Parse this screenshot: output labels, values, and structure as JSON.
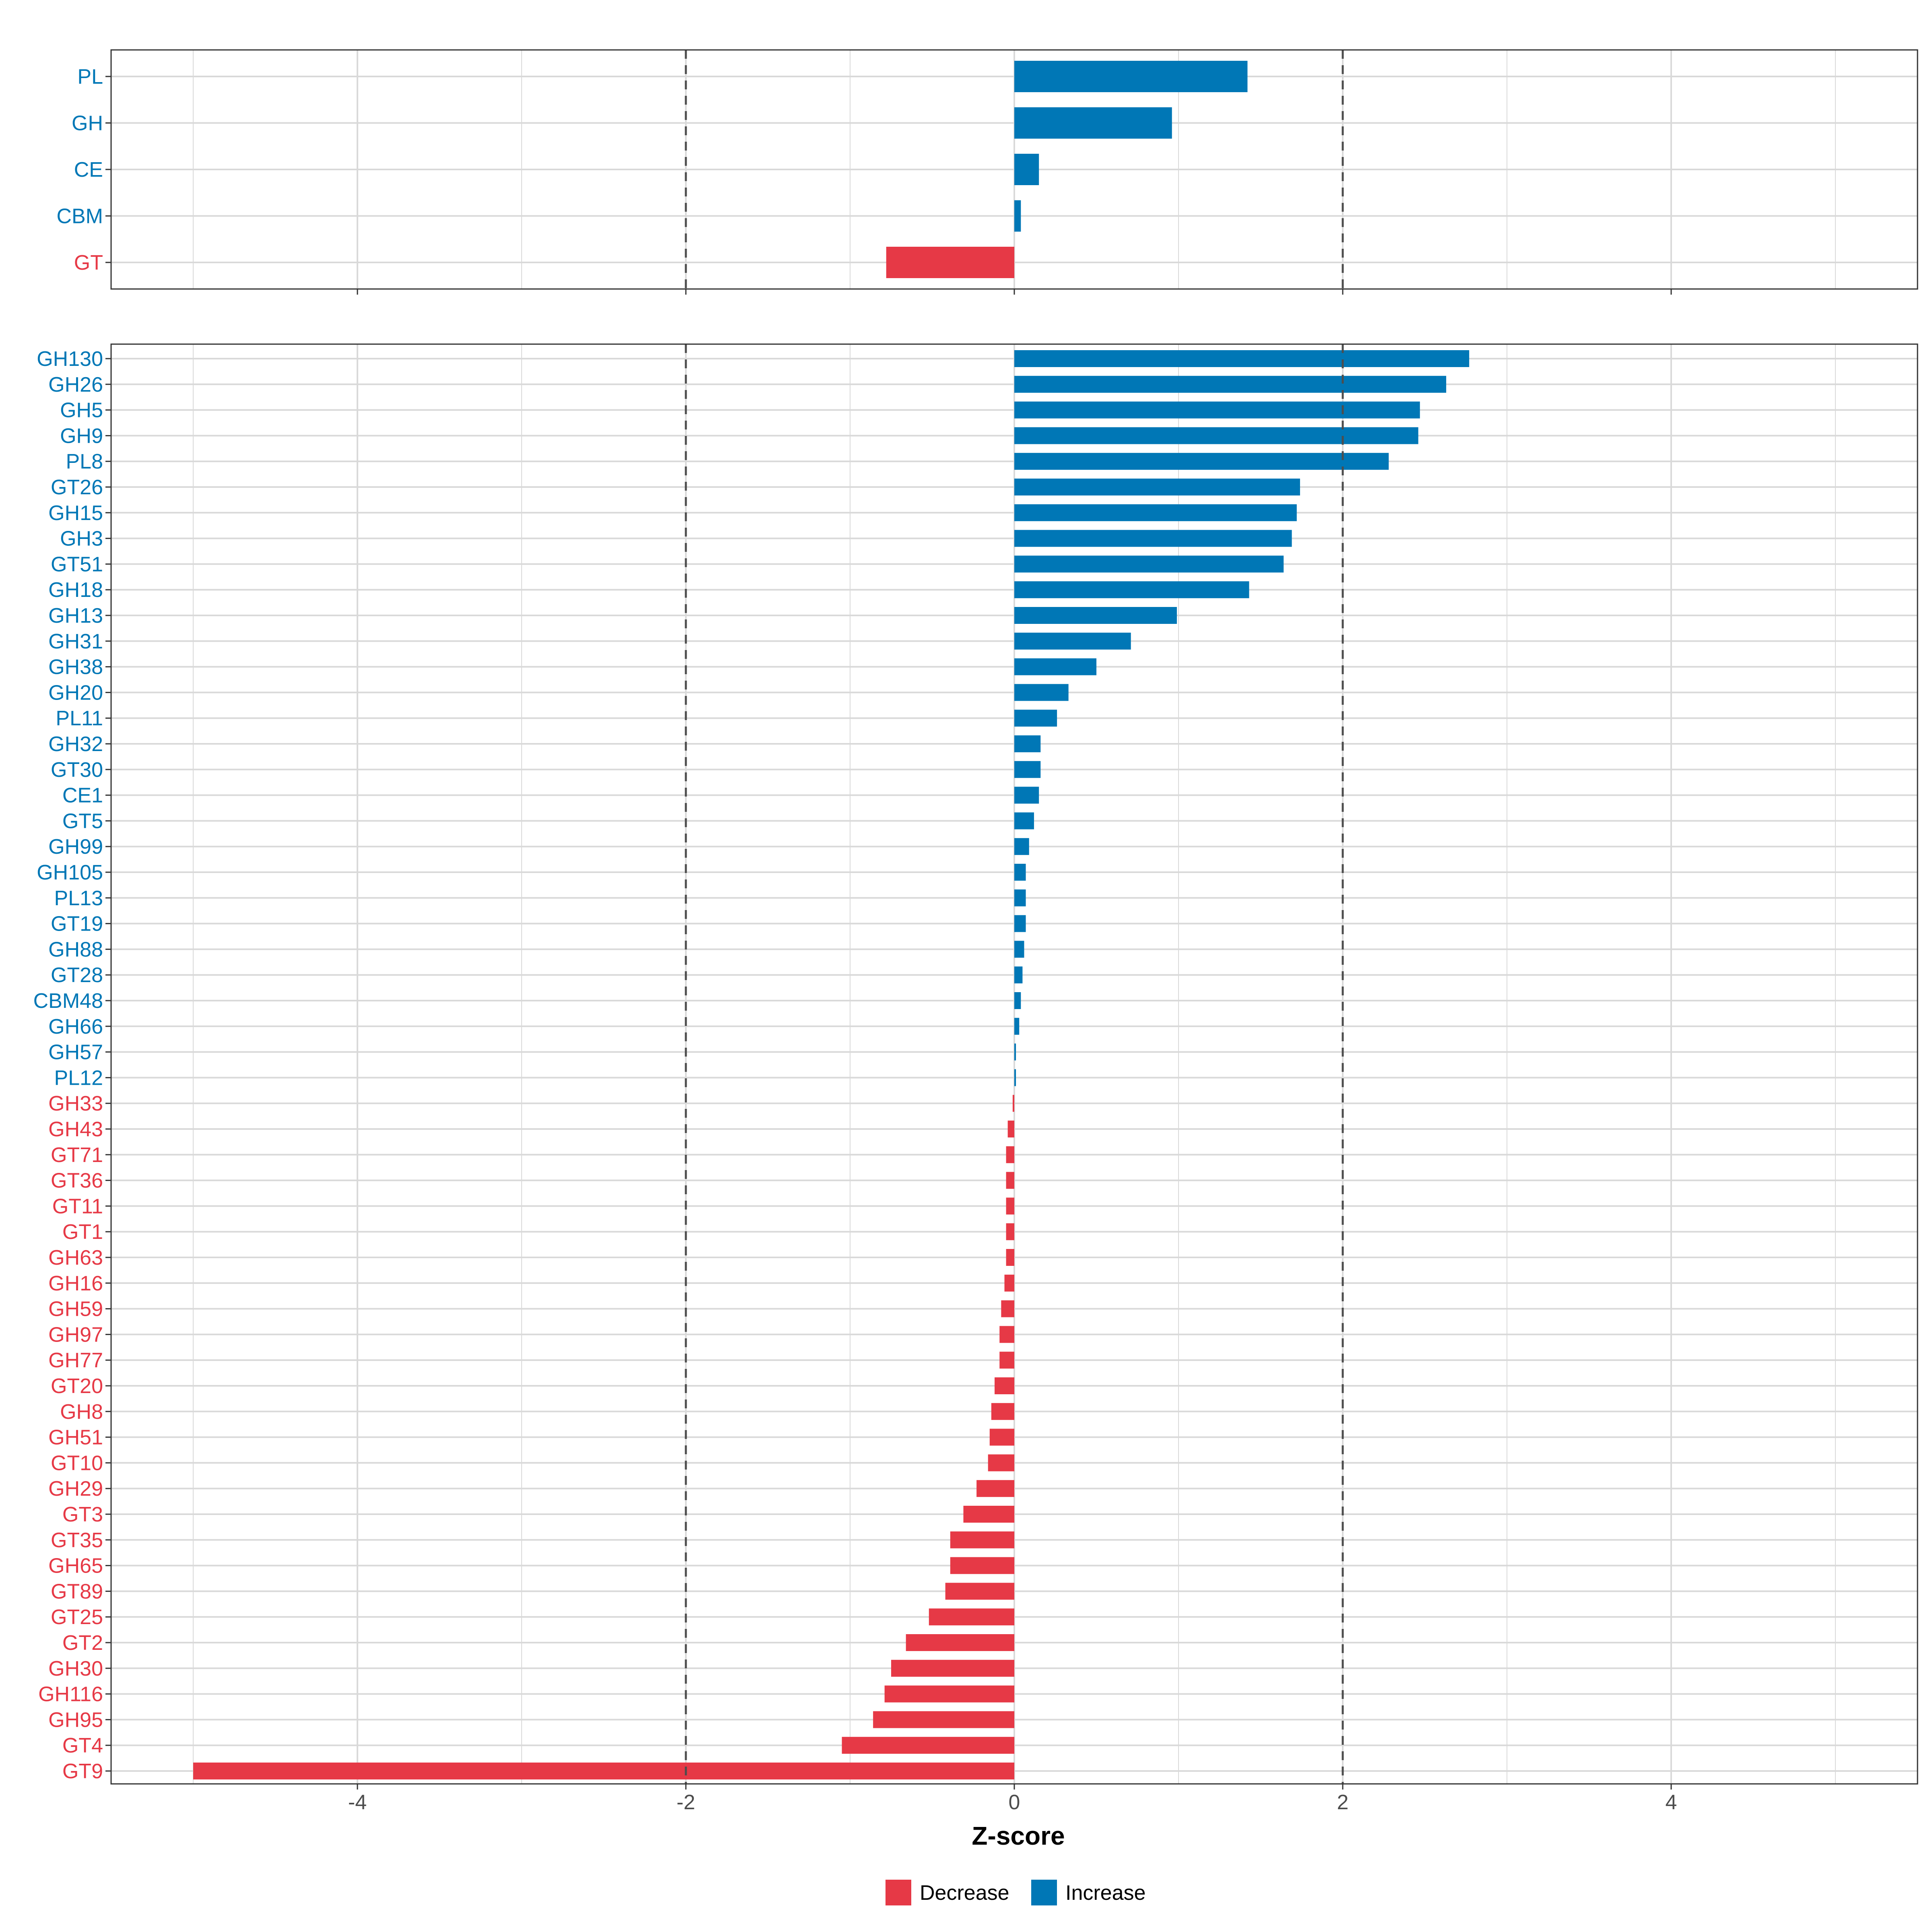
{
  "colors": {
    "decrease": "#e63946",
    "increase": "#0077b6",
    "grid": "#d9d9d9",
    "axis": "#333333",
    "refline": "#4d4d4d"
  },
  "chart_data": {
    "type": "bar",
    "orientation": "horizontal",
    "xlabel": "Z-score",
    "xlim": [
      -5.5,
      5.5
    ],
    "xticks": [
      -4,
      -2,
      0,
      2,
      4
    ],
    "xtick_labels": [
      "-4",
      "-2",
      "0",
      "2",
      "4"
    ],
    "reference_lines": [
      -2,
      2
    ],
    "legend": {
      "position": "bottom",
      "entries": [
        {
          "label": "Decrease",
          "color_key": "decrease"
        },
        {
          "label": "Increase",
          "color_key": "increase"
        }
      ]
    },
    "panels": [
      {
        "name": "classes",
        "categories": [
          "PL",
          "GH",
          "CE",
          "CBM",
          "GT"
        ],
        "values": [
          1.42,
          0.96,
          0.15,
          0.04,
          -0.78
        ]
      },
      {
        "name": "families",
        "categories": [
          "GH130",
          "GH26",
          "GH5",
          "GH9",
          "PL8",
          "GT26",
          "GH15",
          "GH3",
          "GT51",
          "GH18",
          "GH13",
          "GH31",
          "GH38",
          "GH20",
          "PL11",
          "GH32",
          "GT30",
          "CE1",
          "GT5",
          "GH99",
          "GH105",
          "PL13",
          "GT19",
          "GH88",
          "GT28",
          "CBM48",
          "GH66",
          "GH57",
          "PL12",
          "GH33",
          "GH43",
          "GT71",
          "GT36",
          "GT11",
          "GT1",
          "GH63",
          "GH16",
          "GH59",
          "GH97",
          "GH77",
          "GT20",
          "GH8",
          "GH51",
          "GT10",
          "GH29",
          "GT3",
          "GT35",
          "GH65",
          "GT89",
          "GT25",
          "GT2",
          "GH30",
          "GH116",
          "GH95",
          "GT4",
          "GT9"
        ],
        "values": [
          2.77,
          2.63,
          2.47,
          2.46,
          2.28,
          1.74,
          1.72,
          1.69,
          1.64,
          1.43,
          0.99,
          0.71,
          0.5,
          0.33,
          0.26,
          0.16,
          0.16,
          0.15,
          0.12,
          0.09,
          0.07,
          0.07,
          0.07,
          0.06,
          0.05,
          0.04,
          0.03,
          0.01,
          0.01,
          -0.01,
          -0.04,
          -0.05,
          -0.05,
          -0.05,
          -0.05,
          -0.05,
          -0.06,
          -0.08,
          -0.09,
          -0.09,
          -0.12,
          -0.14,
          -0.15,
          -0.16,
          -0.23,
          -0.31,
          -0.39,
          -0.39,
          -0.42,
          -0.52,
          -0.66,
          -0.75,
          -0.79,
          -0.86,
          -1.05,
          -5.0
        ]
      }
    ]
  }
}
